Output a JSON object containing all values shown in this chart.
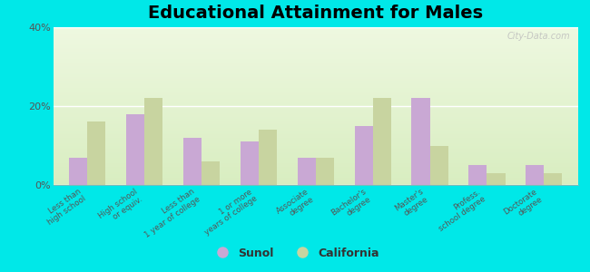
{
  "title": "Educational Attainment for Males",
  "categories": [
    "Less than\nhigh school",
    "High school\nor equiv.",
    "Less than\n1 year of college",
    "1 or more\nyears of college",
    "Associate\ndegree",
    "Bachelor's\ndegree",
    "Master's\ndegree",
    "Profess.\nschool degree",
    "Doctorate\ndegree"
  ],
  "sunol_values": [
    7,
    18,
    12,
    11,
    7,
    15,
    22,
    5,
    5
  ],
  "california_values": [
    16,
    22,
    6,
    14,
    7,
    22,
    10,
    3,
    3
  ],
  "sunol_color": "#c9a8d4",
  "california_color": "#c8d4a0",
  "bg_color_top": "#d8edc0",
  "bg_color_bottom": "#eef8e0",
  "outer_bg": "#00e8e8",
  "ylim": [
    0,
    40
  ],
  "yticks": [
    0,
    20,
    40
  ],
  "ytick_labels": [
    "0%",
    "20%",
    "40%"
  ],
  "title_fontsize": 14,
  "legend_labels": [
    "Sunol",
    "California"
  ],
  "bar_width": 0.32,
  "watermark": "City-Data.com"
}
